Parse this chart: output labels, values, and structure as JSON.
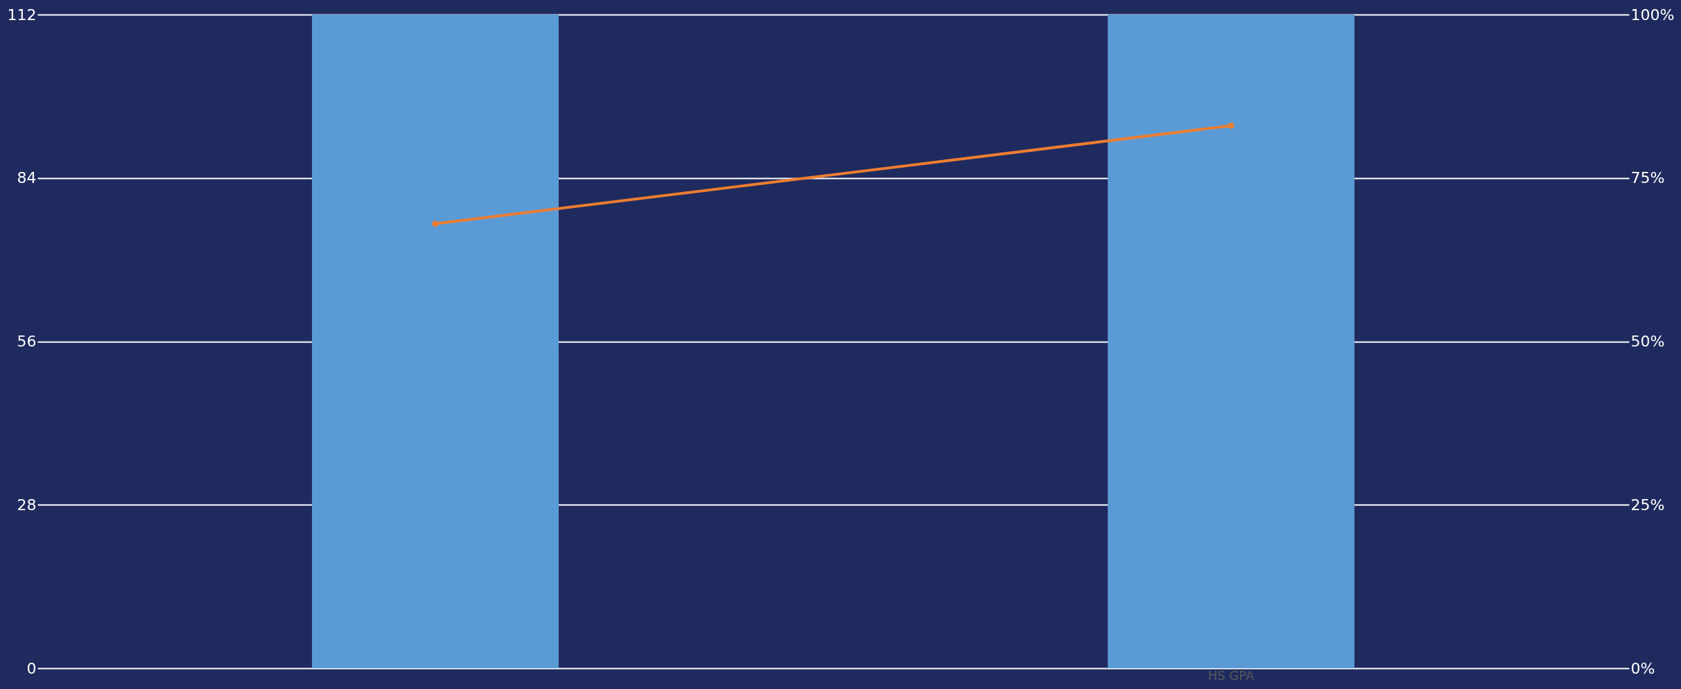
{
  "chart_data": {
    "type": "bar",
    "categories": [
      null,
      "HS GPA"
    ],
    "series": [
      {
        "color": "#5b9bd5",
        "values": [
          112,
          112
        ]
      },
      {
        "type": "line",
        "axis": "y2",
        "color": "#ed7d31",
        "values": [
          68,
          83
        ],
        "marker": "circle"
      }
    ],
    "ylim": [
      0,
      112
    ],
    "yticks": [
      0,
      28,
      56,
      84,
      112
    ],
    "y2lim": [
      0,
      100
    ],
    "y2ticks": [
      {
        "value": 0,
        "label": "0%"
      },
      {
        "value": 25,
        "label": "25%"
      },
      {
        "value": 50,
        "label": "50%"
      },
      {
        "value": 75,
        "label": "75%"
      },
      {
        "value": 100,
        "label": "100%"
      }
    ],
    "grid": "y"
  }
}
